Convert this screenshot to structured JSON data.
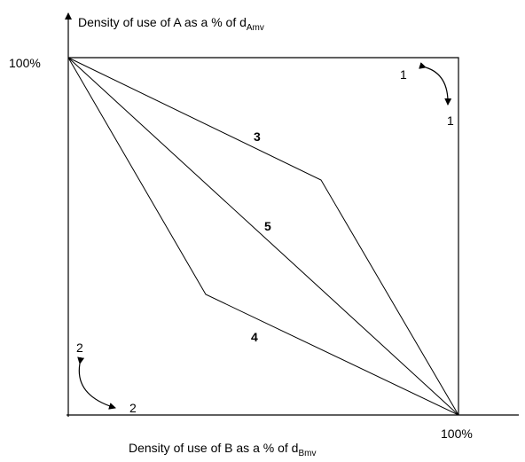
{
  "y_axis": {
    "title": "Density of use of A as a % of d",
    "subscript": "Amv",
    "end_label": "100%"
  },
  "x_axis": {
    "title": "Density of use of B as a % of d",
    "subscript": "Bmv",
    "end_label": "100%"
  },
  "lines": [
    {
      "label": "3"
    },
    {
      "label": "5"
    },
    {
      "label": "4"
    }
  ],
  "arrows": [
    {
      "labels": [
        "1",
        "1"
      ]
    },
    {
      "labels": [
        "2",
        "2"
      ]
    }
  ]
}
